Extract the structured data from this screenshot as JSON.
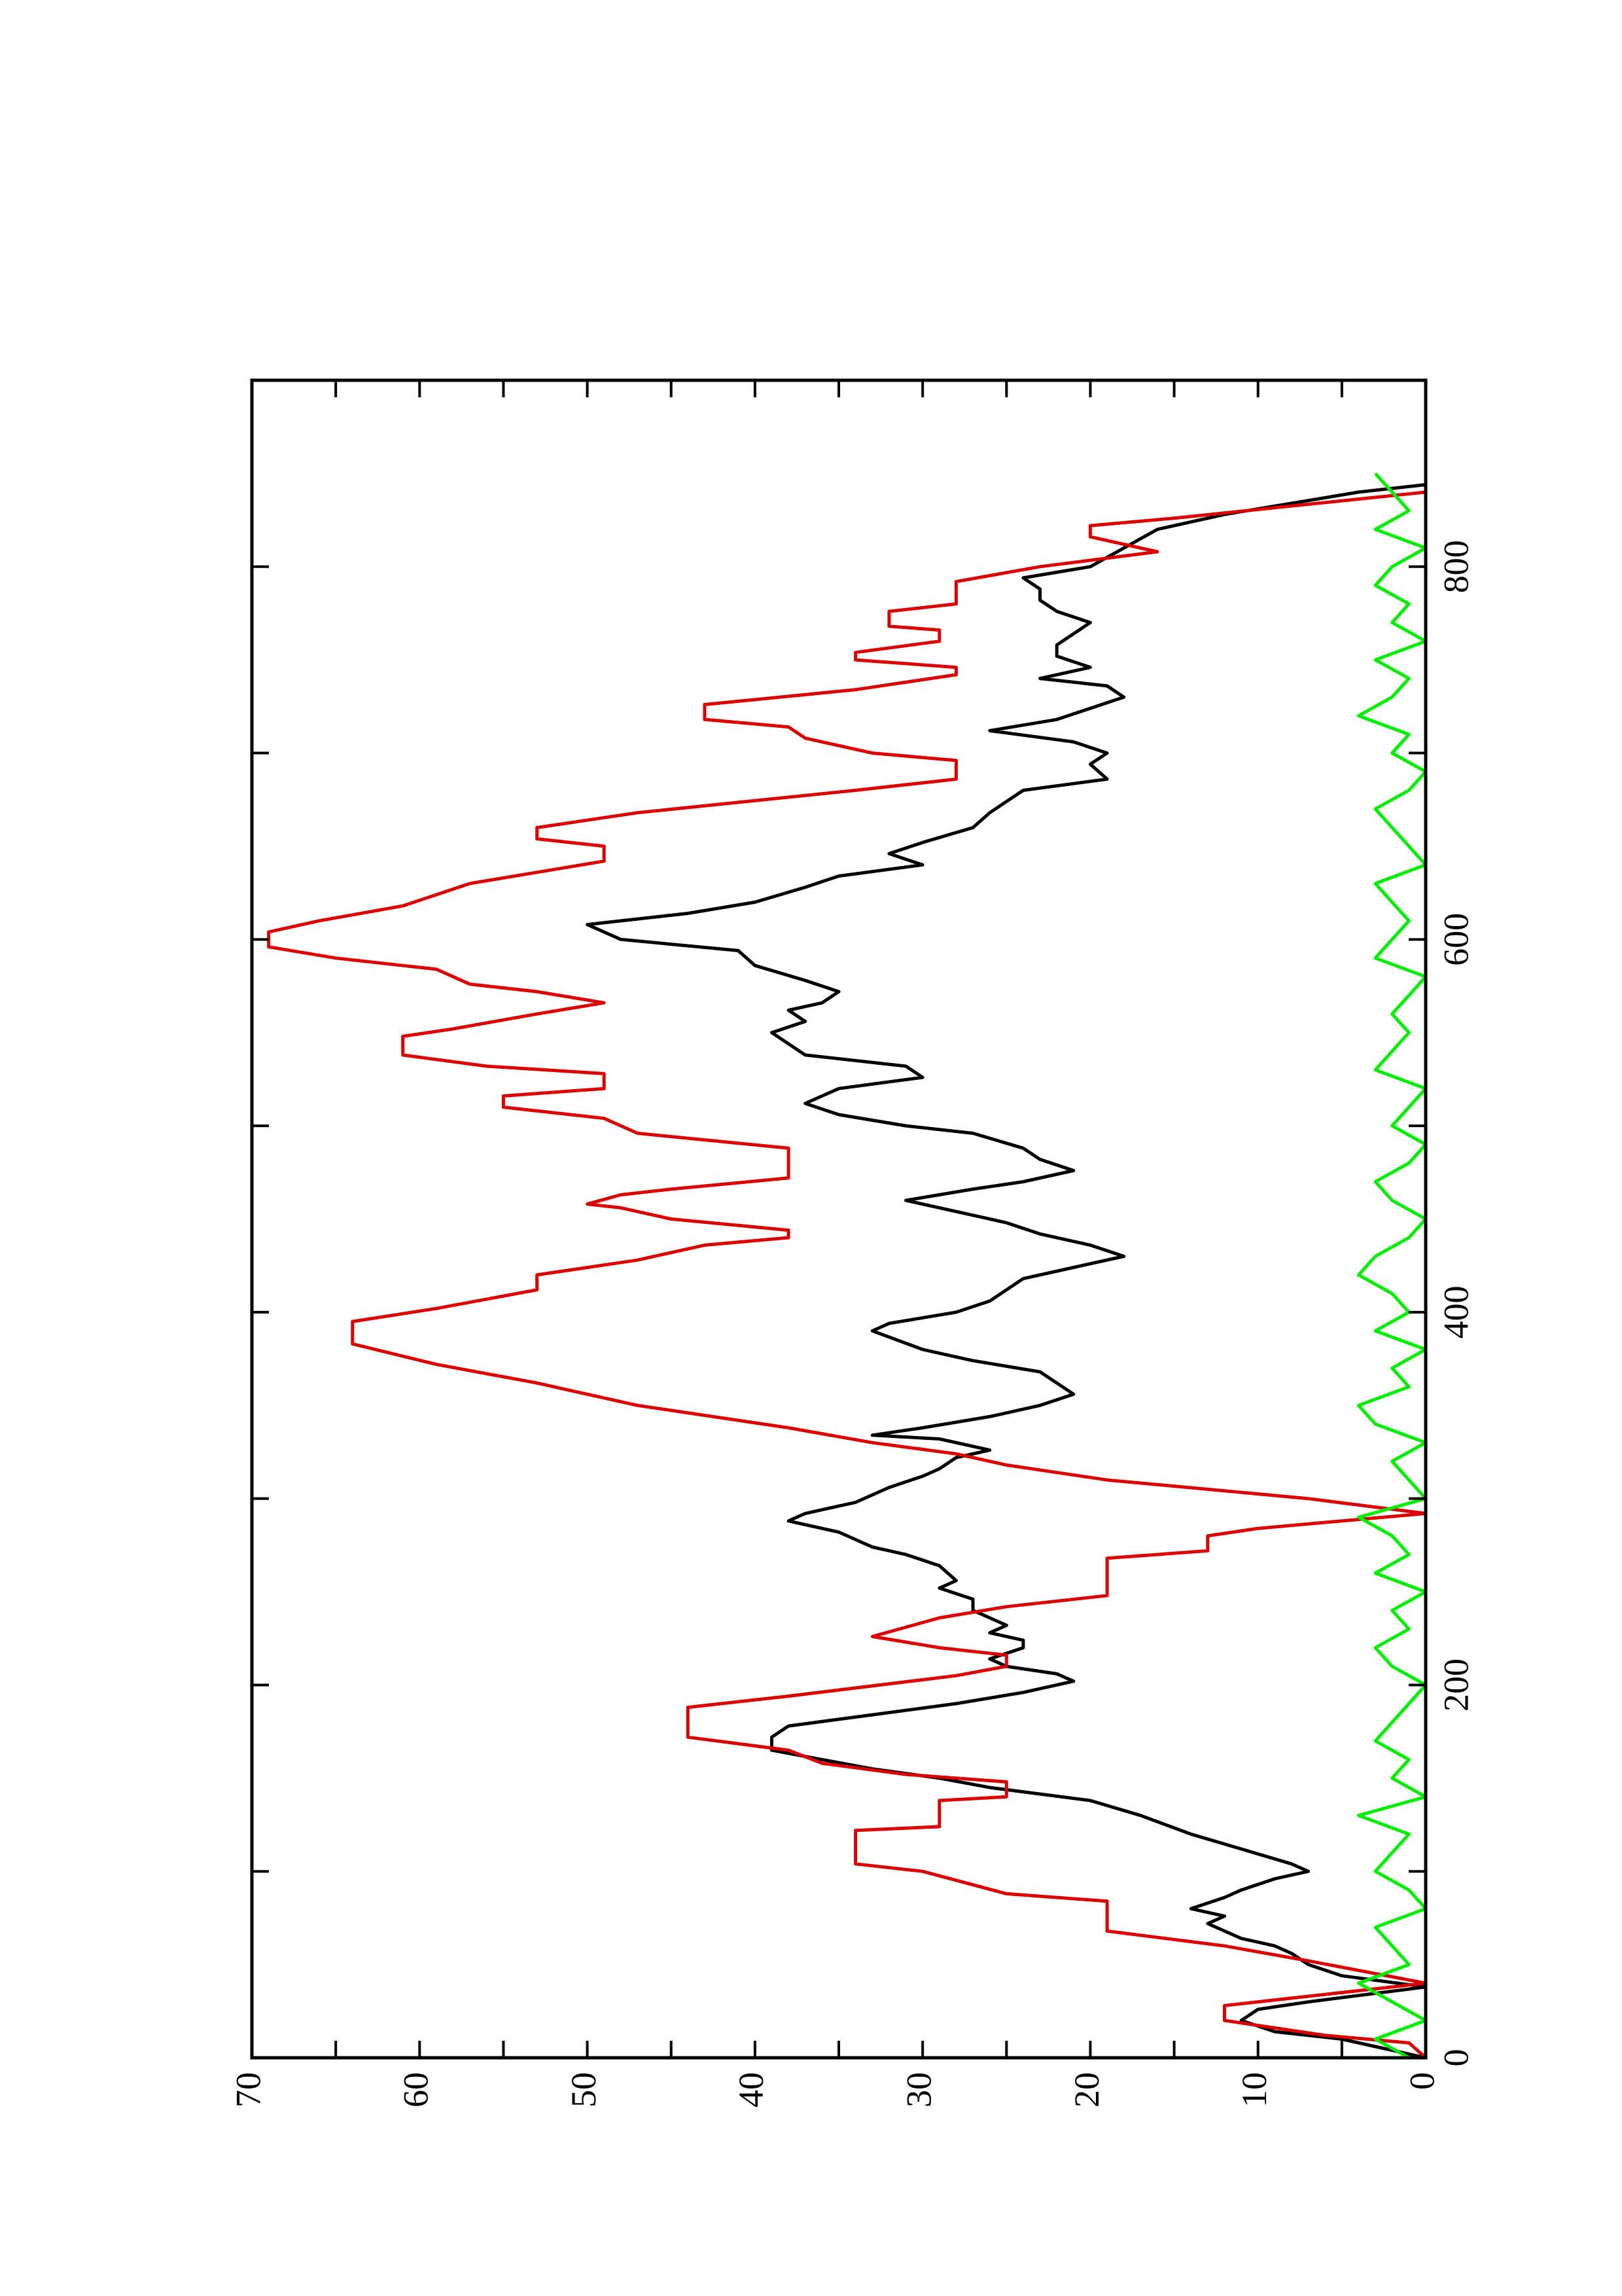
{
  "chart_data": {
    "type": "line",
    "xlim": [
      0,
      900
    ],
    "ylim": [
      0,
      70
    ],
    "xticks": [
      0,
      200,
      400,
      600,
      800
    ],
    "xminorticks": [
      100,
      300,
      500,
      700
    ],
    "yticks": [
      0,
      10,
      20,
      30,
      40,
      50,
      60,
      70
    ],
    "yminorticks": [
      5,
      15,
      25,
      35,
      45,
      55,
      65
    ],
    "series": [
      {
        "color": "#000000",
        "x": [
          0,
          10,
          14,
          20,
          26,
          30,
          38,
          44,
          50,
          56,
          60,
          64,
          72,
          76,
          80,
          86,
          90,
          96,
          100,
          104,
          112,
          120,
          130,
          138,
          145,
          150,
          155,
          160,
          165,
          172,
          178,
          184,
          190,
          196,
          202,
          206,
          210,
          214,
          220,
          224,
          228,
          232,
          236,
          240,
          246,
          252,
          256,
          264,
          270,
          274,
          282,
          288,
          292,
          298,
          306,
          312,
          316,
          322,
          326,
          332,
          334,
          338,
          344,
          350,
          356,
          362,
          368,
          374,
          380,
          390,
          394,
          400,
          406,
          412,
          418,
          424,
          430,
          436,
          442,
          448,
          454,
          460,
          466,
          470,
          476,
          482,
          488,
          496,
          500,
          506,
          512,
          520,
          526,
          532,
          538,
          544,
          550,
          556,
          562,
          566,
          572,
          578,
          586,
          594,
          600,
          608,
          614,
          620,
          628,
          634,
          640,
          646,
          652,
          660,
          668,
          674,
          680,
          686,
          694,
          700,
          706,
          712,
          718,
          724,
          730,
          736,
          740,
          746,
          752,
          758,
          764,
          770,
          776,
          782,
          788,
          794,
          800,
          810,
          820,
          828,
          834,
          840,
          844
        ],
        "values": [
          0,
          5,
          9,
          11,
          10,
          7,
          0,
          5,
          7,
          8,
          9,
          11,
          13,
          12,
          14,
          12,
          11,
          9,
          7,
          8,
          11,
          14,
          17,
          20,
          26,
          29,
          33,
          36,
          39,
          39,
          38,
          33,
          28,
          24,
          21,
          22,
          25,
          26,
          24,
          24,
          26,
          25,
          26,
          27,
          27,
          29,
          28,
          29,
          31,
          33,
          35,
          38,
          37,
          34,
          32,
          30,
          29,
          28,
          26,
          29,
          33,
          30,
          26,
          23,
          21,
          22,
          23,
          27,
          30,
          33,
          32,
          28,
          26,
          25,
          24,
          21,
          18,
          20,
          23,
          25,
          28,
          31,
          27,
          24,
          21,
          23,
          24,
          27,
          31,
          35,
          37,
          35,
          30,
          31,
          37,
          38,
          39,
          37,
          38,
          36,
          35,
          37,
          40,
          41,
          48,
          50,
          44,
          40,
          37,
          35,
          30,
          32,
          30,
          27,
          26,
          25,
          24,
          19,
          20,
          19,
          21,
          26,
          22,
          20,
          18,
          19,
          23,
          20,
          22,
          22,
          21,
          20,
          22,
          23,
          23,
          24,
          20,
          18,
          16,
          12,
          8,
          4,
          0
        ]
      },
      {
        "color": "#dd0000",
        "x": [
          0,
          8,
          12,
          16,
          20,
          28,
          40,
          52,
          60,
          68,
          84,
          88,
          100,
          104,
          122,
          124,
          138,
          140,
          148,
          152,
          158,
          165,
          172,
          188,
          194,
          205,
          210,
          216,
          220,
          226,
          236,
          242,
          248,
          268,
          272,
          280,
          284,
          292,
          300,
          310,
          318,
          324,
          330,
          338,
          350,
          362,
          372,
          383,
          395,
          402,
          412,
          420,
          428,
          436,
          440,
          444,
          450,
          456,
          458,
          463,
          466,
          472,
          488,
          496,
          504,
          510,
          516,
          520,
          528,
          532,
          538,
          548,
          552,
          560,
          566,
          572,
          576,
          584,
          590,
          596,
          604,
          610,
          618,
          624,
          630,
          636,
          642,
          650,
          654,
          660,
          668,
          680,
          686,
          696,
          700,
          708,
          714,
          718,
          726,
          734,
          742,
          746,
          750,
          754,
          760,
          766,
          768,
          776,
          780,
          792,
          800,
          808,
          816,
          822,
          826,
          840
        ],
        "values": [
          0,
          1,
          6,
          9,
          12,
          12,
          0,
          7,
          12,
          19,
          19,
          25,
          30,
          34,
          34,
          29,
          29,
          25,
          25,
          31,
          36,
          38,
          44,
          44,
          38,
          28,
          25,
          25,
          29,
          33,
          29,
          25,
          19,
          19,
          13,
          13,
          10,
          0,
          7,
          19,
          25,
          28,
          33,
          38,
          47,
          53,
          59,
          64,
          64,
          59,
          53,
          53,
          47,
          43,
          38,
          38,
          45,
          48,
          50,
          48,
          45,
          38,
          38,
          47,
          49,
          55,
          55,
          49,
          49,
          56,
          61,
          61,
          58,
          53,
          49,
          53,
          57,
          59,
          65,
          69,
          69,
          66,
          61,
          59,
          57,
          53,
          49,
          49,
          53,
          53,
          47,
          34,
          28,
          28,
          33,
          37,
          38,
          43,
          43,
          34,
          28,
          28,
          34,
          34,
          29,
          29,
          32,
          32,
          28,
          28,
          23,
          16,
          20,
          20,
          15,
          0
        ]
      },
      {
        "color": "#00ee00",
        "x": [
          0,
          10,
          20,
          30,
          40,
          50,
          60,
          70,
          80,
          90,
          100,
          110,
          120,
          130,
          140,
          150,
          160,
          170,
          180,
          190,
          200,
          210,
          220,
          230,
          240,
          250,
          260,
          270,
          280,
          290,
          300,
          310,
          320,
          330,
          340,
          350,
          360,
          370,
          380,
          390,
          400,
          410,
          420,
          430,
          440,
          450,
          460,
          470,
          480,
          490,
          500,
          510,
          520,
          530,
          540,
          550,
          560,
          570,
          580,
          590,
          600,
          610,
          620,
          630,
          640,
          650,
          660,
          670,
          680,
          690,
          700,
          710,
          720,
          730,
          740,
          750,
          760,
          770,
          780,
          790,
          800,
          810,
          820,
          830,
          840,
          850
        ],
        "values": [
          1,
          3,
          0,
          2,
          4,
          1,
          2,
          3,
          0,
          1,
          3,
          2,
          1,
          4,
          0,
          2,
          1,
          3,
          2,
          1,
          0,
          2,
          3,
          1,
          2,
          0,
          3,
          1,
          2,
          4,
          0,
          1,
          2,
          0,
          3,
          4,
          1,
          2,
          0,
          3,
          1,
          2,
          4,
          3,
          1,
          0,
          2,
          3,
          1,
          0,
          2,
          1,
          0,
          3,
          2,
          1,
          2,
          1,
          0,
          3,
          2,
          1,
          2,
          3,
          0,
          1,
          2,
          3,
          1,
          0,
          2,
          1,
          4,
          2,
          1,
          3,
          0,
          2,
          1,
          3,
          2,
          0,
          3,
          1,
          2,
          3
        ]
      }
    ]
  }
}
